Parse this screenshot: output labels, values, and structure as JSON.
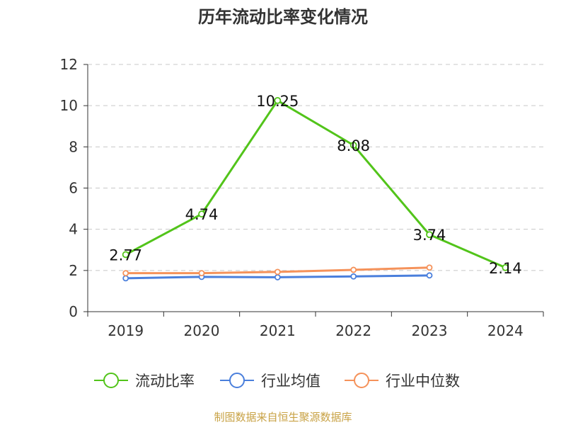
{
  "chart_data": {
    "type": "line",
    "title": "历年流动比率变化情况",
    "categories": [
      "2019",
      "2020",
      "2021",
      "2022",
      "2023",
      "2024"
    ],
    "ylim": [
      0,
      12
    ],
    "yticks": [
      0,
      2,
      4,
      6,
      8,
      10,
      12
    ],
    "grid": true,
    "legend_position": "bottom-center",
    "series": [
      {
        "name": "流动比率",
        "color": "#52c41a",
        "values": [
          2.77,
          4.74,
          10.25,
          8.08,
          3.74,
          2.14
        ],
        "labels": [
          "2.77",
          "4.74",
          "10.25",
          "8.08",
          "3.74",
          "2.14"
        ]
      },
      {
        "name": "行业均值",
        "color": "#4a7fdc",
        "values": [
          1.62,
          1.69,
          1.67,
          1.71,
          1.76,
          null
        ]
      },
      {
        "name": "行业中位数",
        "color": "#f5925a",
        "values": [
          1.87,
          1.87,
          1.93,
          2.03,
          2.14,
          null
        ]
      }
    ]
  },
  "source": "制图数据来自恒生聚源数据库"
}
